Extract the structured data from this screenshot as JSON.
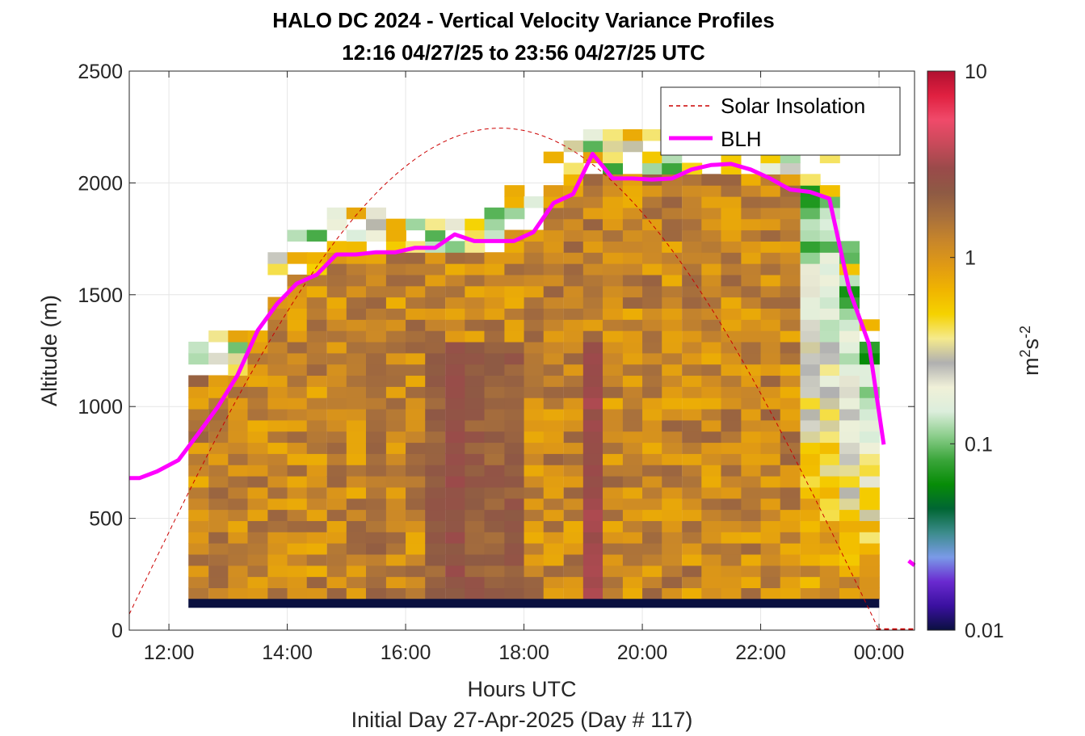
{
  "chart_data": {
    "type": "heatmap",
    "title_line1": "HALO DC 2024 - Vertical Velocity Variance Profiles",
    "title_line2": "12:16 04/27/25 to 23:56 04/27/25  UTC",
    "xlabel": "Hours UTC",
    "xlabel2": "Initial Day 27-Apr-2025 (Day # 117)",
    "ylabel": "Altitude (m)",
    "xlim": [
      11.33,
      24.6
    ],
    "ylim": [
      0,
      2500
    ],
    "x_ticks": [
      12,
      14,
      16,
      18,
      20,
      22,
      24
    ],
    "x_tick_labels": [
      "12:00",
      "14:00",
      "16:00",
      "18:00",
      "20:00",
      "22:00",
      "00:00"
    ],
    "y_ticks": [
      0,
      500,
      1000,
      1500,
      2000,
      2500
    ],
    "y_tick_labels": [
      "0",
      "500",
      "1000",
      "1500",
      "2000",
      "2500"
    ],
    "grid": true,
    "colorbar": {
      "label_base": "m",
      "label_exp1": "2",
      "label_mid": "s",
      "label_exp2": "-2",
      "scale": "log",
      "range": [
        0.01,
        10
      ],
      "tick_labels": [
        "10",
        "1",
        "0.1",
        "0.01"
      ],
      "tick_values": [
        10,
        1,
        0.1,
        0.01
      ],
      "colors": [
        "#0a1040",
        "#3a10a0",
        "#6a2ad0",
        "#7a9ae8",
        "#3c8c8c",
        "#006633",
        "#078c07",
        "#3aa53a",
        "#8cce8c",
        "#dceedc",
        "#f0f0d8",
        "#b0b0b0",
        "#f5ea8c",
        "#f5d200",
        "#f0b400",
        "#e09a14",
        "#c8862a",
        "#a8703c",
        "#8e5a44",
        "#9a4a4a",
        "#c84a5a",
        "#f04a6a",
        "#e02040",
        "#b01030"
      ]
    },
    "legend": {
      "position": "top-right",
      "entries": [
        {
          "label": "Solar Insolation",
          "style": "dashed",
          "color": "#cc0000"
        },
        {
          "label": "BLH",
          "style": "solid",
          "color": "#ff00ff"
        }
      ]
    },
    "blh": {
      "name": "BLH",
      "color": "#ff00ff",
      "x": [
        11.33,
        11.5,
        11.8,
        12.16,
        12.5,
        12.83,
        13.16,
        13.5,
        13.83,
        14.16,
        14.5,
        14.83,
        15.16,
        15.5,
        15.83,
        16.16,
        16.5,
        16.83,
        17.16,
        17.5,
        17.83,
        18.16,
        18.5,
        18.83,
        19.16,
        19.5,
        19.83,
        20.16,
        20.5,
        20.83,
        21.16,
        21.5,
        21.83,
        22.16,
        22.5,
        22.83,
        23.16,
        23.5,
        23.83,
        24.08
      ],
      "y": [
        680,
        680,
        710,
        760,
        880,
        1000,
        1140,
        1340,
        1460,
        1550,
        1590,
        1680,
        1680,
        1690,
        1690,
        1710,
        1710,
        1770,
        1740,
        1740,
        1740,
        1780,
        1910,
        1950,
        2130,
        2020,
        2020,
        2015,
        2020,
        2060,
        2080,
        2085,
        2060,
        2020,
        1970,
        1960,
        1930,
        1520,
        1280,
        830
      ]
    },
    "blh_tail": {
      "x": [
        24.5,
        24.6
      ],
      "y": [
        310,
        290
      ]
    },
    "solar_insolation": {
      "name": "Solar Insolation",
      "color": "#cc0000",
      "peak_time": 17.1,
      "peak_altitude": 2245,
      "zero_times": [
        11.2,
        24.0
      ],
      "tail_x": [
        23.95,
        24.6
      ],
      "tail_y": [
        0,
        0
      ]
    },
    "time_bins": [
      12.33,
      12.67,
      13.0,
      13.33,
      13.67,
      14.0,
      14.33,
      14.67,
      15.0,
      15.33,
      15.67,
      16.0,
      16.33,
      16.67,
      17.0,
      17.33,
      17.67,
      18.0,
      18.33,
      18.67,
      19.0,
      19.33,
      19.67,
      20.0,
      20.33,
      20.67,
      21.0,
      21.33,
      21.67,
      22.0,
      22.33,
      22.67,
      23.0,
      23.33,
      23.67
    ],
    "altitude_bin_size": 50,
    "first_gate_band": {
      "y_min": 100,
      "y_max": 140,
      "color": "#0a1040"
    }
  }
}
